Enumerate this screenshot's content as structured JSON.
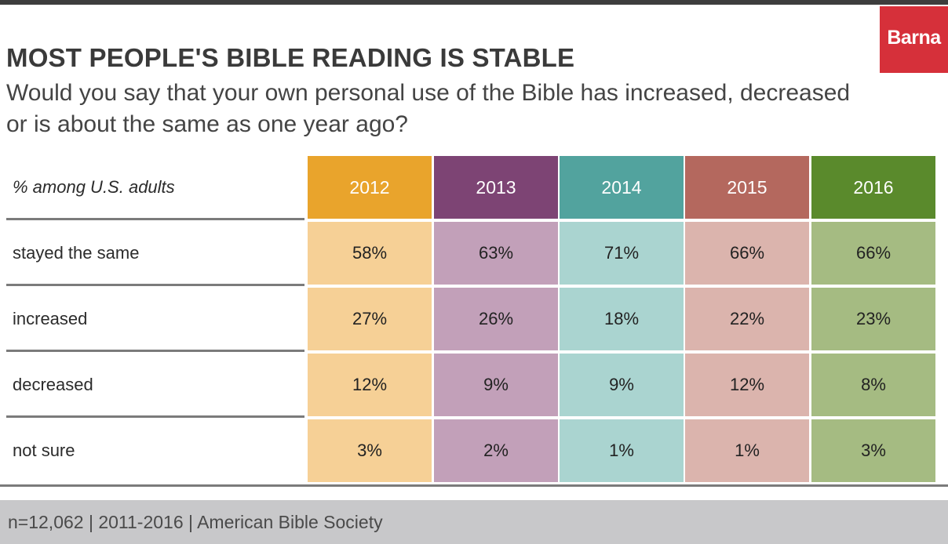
{
  "title": "MOST PEOPLE'S BIBLE READING IS STABLE",
  "subtitle": "Would you say that your own personal use of the Bible has increased, decreased or is about the same as one year ago?",
  "logo": "Barna",
  "footer": "n=12,062  |  2011-2016  |  American Bible Society",
  "chart_data": {
    "type": "table",
    "row_header": "% among U.S. adults",
    "columns": [
      "2012",
      "2013",
      "2014",
      "2015",
      "2016"
    ],
    "rows": [
      {
        "label": "stayed the same",
        "values": [
          "58%",
          "63%",
          "71%",
          "66%",
          "66%"
        ]
      },
      {
        "label": "increased",
        "values": [
          "27%",
          "26%",
          "18%",
          "22%",
          "23%"
        ]
      },
      {
        "label": "decreased",
        "values": [
          "12%",
          "9%",
          "9%",
          "12%",
          "8%"
        ]
      },
      {
        "label": "not sure",
        "values": [
          "3%",
          "2%",
          "1%",
          "1%",
          "3%"
        ]
      }
    ]
  },
  "colors": {
    "header": [
      "#e9a42c",
      "#7d4474",
      "#52a39e",
      "#b4685e",
      "#5a8a2c"
    ],
    "cells": [
      "#f6d096",
      "#c2a0b9",
      "#aad4d0",
      "#dbb4ad",
      "#a5bb82"
    ],
    "logo_bg": "#d6303a"
  }
}
